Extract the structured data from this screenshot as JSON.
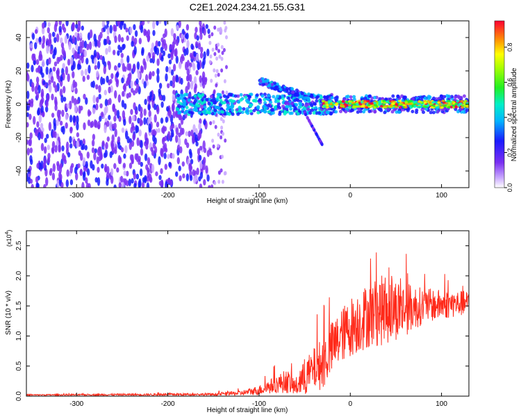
{
  "title": "C2E1.2024.234.21.55.G31",
  "colors": {
    "snr_line": "#ff2a1a",
    "axis": "#000000",
    "scatter_purple": "#7b2ff2"
  },
  "chart_data": [
    {
      "type": "heatmap",
      "xlabel": "Height of straight line (km)",
      "ylabel": "Frequency (Hz)",
      "xlim": [
        -355,
        130
      ],
      "ylim": [
        -50,
        50
      ],
      "x_ticks": [
        -300,
        -200,
        -100,
        0,
        100
      ],
      "x_tick_labels": [
        "-300",
        "-200",
        "-100",
        "0",
        "100"
      ],
      "y_ticks": [
        -40,
        -20,
        0,
        20,
        40
      ],
      "y_tick_labels": [
        "-40",
        "-20",
        "0",
        "20",
        "40"
      ],
      "colorbar": {
        "label": "Normalized spectral amplitude",
        "range": [
          0.0,
          0.95
        ],
        "ticks": [
          0.0,
          0.2,
          0.4,
          0.6,
          0.8
        ],
        "tick_labels": [
          "0.0",
          "0.2",
          "0.4",
          "0.6",
          "0.8"
        ]
      },
      "regions": [
        {
          "x_range": [
            -355,
            -155
          ],
          "freq_range": [
            -50,
            50
          ],
          "amplitude": 0.12,
          "desc": "broadband noise"
        },
        {
          "x_range": [
            -155,
            -135
          ],
          "freq_range": [
            -50,
            50
          ],
          "amplitude": 0.05,
          "desc": "faint noise"
        },
        {
          "x_range": [
            -190,
            -20
          ],
          "freq_center": 0,
          "freq_spread": 6,
          "amplitude": 0.35,
          "desc": "signal band"
        },
        {
          "x_range": [
            -100,
            -45
          ],
          "freq_start": 14,
          "freq_end": 4,
          "amplitude": 0.3,
          "desc": "upper branch"
        },
        {
          "x_range": [
            -50,
            -30
          ],
          "freq_start": -5,
          "freq_end": -25,
          "amplitude": 0.15,
          "desc": "lower tail"
        },
        {
          "x_range": [
            -30,
            130
          ],
          "freq_center": 0,
          "freq_spread": 2,
          "amplitude": 0.75,
          "desc": "strong carrier"
        }
      ]
    },
    {
      "type": "line",
      "xlabel": "Height of straight line (km)",
      "ylabel": "SNR (10 * v/v)",
      "y_multiplier": "(x10",
      "y_multiplier_exp": "4",
      "xlim": [
        -355,
        130
      ],
      "ylim": [
        0,
        2.75
      ],
      "x_ticks": [
        -300,
        -200,
        -100,
        0,
        100
      ],
      "x_tick_labels": [
        "-300",
        "-200",
        "-100",
        "0",
        "100"
      ],
      "y_ticks": [
        0.0,
        0.5,
        1.0,
        1.5,
        2.0,
        2.5
      ],
      "y_tick_labels": [
        "0.0",
        "0.5",
        "1.0",
        "1.5",
        "2.0",
        "2.5"
      ],
      "envelope": {
        "x": [
          -355,
          -150,
          -120,
          -100,
          -80,
          -70,
          -60,
          -50,
          -40,
          -30,
          -20,
          -10,
          0,
          20,
          40,
          60,
          80,
          100,
          130
        ],
        "mean": [
          0.02,
          0.03,
          0.05,
          0.1,
          0.2,
          0.25,
          0.15,
          0.3,
          0.45,
          0.55,
          0.8,
          1.0,
          1.15,
          1.35,
          1.45,
          1.45,
          1.5,
          1.52,
          1.55
        ],
        "amp": [
          0.01,
          0.02,
          0.04,
          0.08,
          0.15,
          0.2,
          0.15,
          0.3,
          0.35,
          0.45,
          0.45,
          0.45,
          0.5,
          0.55,
          0.6,
          0.45,
          0.3,
          0.25,
          0.2
        ]
      },
      "series": [
        {
          "color": "#ff2a1a"
        }
      ]
    }
  ]
}
